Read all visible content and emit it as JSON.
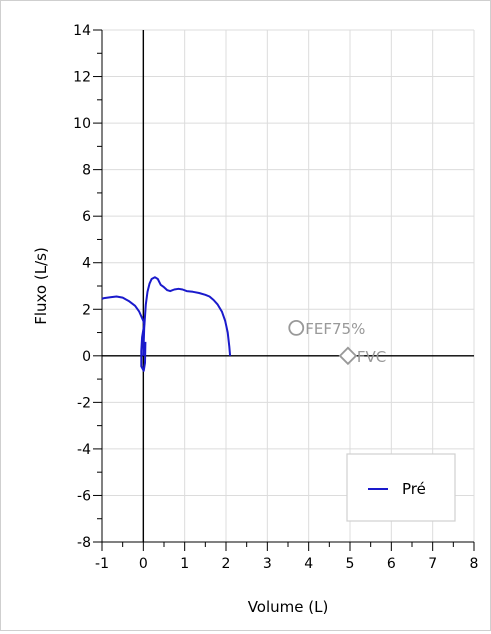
{
  "chart_data": {
    "type": "line",
    "xlabel": "Volume (L)",
    "ylabel": "Fluxo (L/s)",
    "xlim": [
      -1,
      8
    ],
    "ylim": [
      -8,
      14
    ],
    "x_ticks": [
      -1,
      0,
      1,
      2,
      3,
      4,
      5,
      6,
      7,
      8
    ],
    "y_ticks": [
      -8,
      -6,
      -4,
      -2,
      0,
      2,
      4,
      6,
      8,
      10,
      12,
      14
    ],
    "grid": true,
    "legend_position": "bottom-right",
    "series": [
      {
        "name": "Pré",
        "color": "#1a1acc",
        "points": [
          [
            0.0,
            0.0
          ],
          [
            0.02,
            1.2
          ],
          [
            0.06,
            2.2
          ],
          [
            0.1,
            2.75
          ],
          [
            0.15,
            3.1
          ],
          [
            0.2,
            3.3
          ],
          [
            0.28,
            3.38
          ],
          [
            0.35,
            3.3
          ],
          [
            0.42,
            3.05
          ],
          [
            0.5,
            2.95
          ],
          [
            0.58,
            2.82
          ],
          [
            0.65,
            2.78
          ],
          [
            0.75,
            2.85
          ],
          [
            0.85,
            2.88
          ],
          [
            0.95,
            2.85
          ],
          [
            1.05,
            2.78
          ],
          [
            1.2,
            2.75
          ],
          [
            1.35,
            2.7
          ],
          [
            1.5,
            2.62
          ],
          [
            1.6,
            2.55
          ],
          [
            1.7,
            2.4
          ],
          [
            1.8,
            2.2
          ],
          [
            1.9,
            1.9
          ],
          [
            1.98,
            1.5
          ],
          [
            2.04,
            1.0
          ],
          [
            2.08,
            0.4
          ],
          [
            2.1,
            0.0
          ]
        ],
        "inspiration_points": [
          [
            0.05,
            0.6
          ],
          [
            0.04,
            -0.3
          ],
          [
            0.01,
            -0.65
          ],
          [
            -0.05,
            -0.45
          ],
          [
            -0.05,
            0.2
          ],
          [
            -0.03,
            0.8
          ],
          [
            0.02,
            1.35
          ],
          [
            0.0,
            1.5
          ],
          [
            -0.1,
            1.9
          ],
          [
            -0.2,
            2.15
          ],
          [
            -0.35,
            2.35
          ],
          [
            -0.5,
            2.5
          ],
          [
            -0.65,
            2.55
          ],
          [
            -0.8,
            2.52
          ],
          [
            -0.95,
            2.48
          ],
          [
            -1.0,
            2.45
          ]
        ]
      }
    ],
    "markers": [
      {
        "label": "FEF75%",
        "x": 3.7,
        "y": 1.2,
        "shape": "circle",
        "color": "#999999"
      },
      {
        "label": "FVC",
        "x": 4.95,
        "y": 0.0,
        "shape": "diamond",
        "color": "#999999"
      }
    ]
  }
}
